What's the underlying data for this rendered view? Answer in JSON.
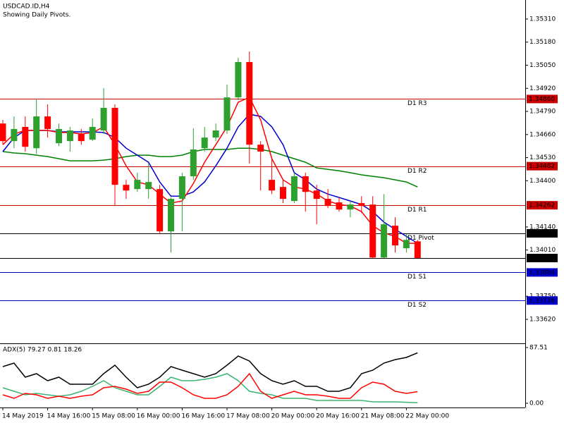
{
  "chart_data": [
    {
      "type": "candlestick",
      "title": "USDCAD.ID,H4",
      "subtitle": "Showing Daily Pivots.",
      "categories": [
        "14 May 2019",
        null,
        null,
        null,
        "14 May 16:00",
        null,
        null,
        null,
        "15 May 08:00",
        null,
        null,
        null,
        "16 May 00:00",
        null,
        null,
        null,
        "16 May 16:00",
        null,
        null,
        null,
        "17 May 08:00",
        null,
        null,
        null,
        "20 May 00:00",
        null,
        null,
        null,
        "20 May 16:00",
        null,
        null,
        null,
        "21 May 08:00",
        null,
        null,
        null,
        "22 May 00:00",
        null
      ],
      "open": [
        1.34722,
        1.34623,
        1.34703,
        1.34583,
        1.34762,
        1.34611,
        1.34623,
        1.34663,
        1.34631,
        1.34683,
        1.3481,
        1.34377,
        1.34353,
        1.34353,
        1.34353,
        1.34115,
        1.34298,
        1.34425,
        1.34583,
        1.34643,
        1.34683,
        1.34869,
        1.35068,
        1.34603,
        1.34405,
        1.34365,
        1.34286,
        1.34425,
        1.34345,
        1.34298,
        1.34278,
        1.34238,
        1.34274,
        1.34266,
        1.33968,
        1.34147,
        1.3402,
        1.34059
      ],
      "high": [
        1.34742,
        1.34762,
        1.34762,
        1.34861,
        1.3483,
        1.34722,
        1.34703,
        1.34691,
        1.3475,
        1.34921,
        1.3483,
        1.34405,
        1.34445,
        1.34496,
        1.34377,
        1.34306,
        1.34445,
        1.34695,
        1.34703,
        1.34722,
        1.34941,
        1.35092,
        1.35127,
        1.34623,
        1.34524,
        1.34405,
        1.34445,
        1.34445,
        1.34377,
        1.34353,
        1.34306,
        1.34286,
        1.34313,
        1.34313,
        1.34325,
        1.34194,
        1.34099,
        1.34067
      ],
      "low": [
        1.34603,
        1.34583,
        1.34564,
        1.34552,
        1.34643,
        1.34595,
        1.34564,
        1.34603,
        1.34623,
        1.34663,
        1.34258,
        1.34298,
        1.34337,
        1.34298,
        1.34099,
        1.33996,
        1.34115,
        1.34405,
        1.34564,
        1.34623,
        1.34663,
        1.34853,
        1.34496,
        1.34345,
        1.34325,
        1.34274,
        1.34274,
        1.34226,
        1.34155,
        1.34246,
        1.34226,
        1.34194,
        1.34218,
        1.33965,
        1.33965,
        1.33996,
        1.33996,
        1.33965
      ],
      "close": [
        1.34623,
        1.34691,
        1.34591,
        1.34762,
        1.34691,
        1.34691,
        1.34683,
        1.34623,
        1.34703,
        1.3481,
        1.34377,
        1.34345,
        1.34405,
        1.34393,
        1.34115,
        1.34298,
        1.34425,
        1.34576,
        1.34643,
        1.34683,
        1.34869,
        1.35068,
        1.34603,
        1.34564,
        1.34345,
        1.34298,
        1.34425,
        1.34337,
        1.34298,
        1.34258,
        1.34238,
        1.34266,
        1.34258,
        1.33968,
        1.34155,
        1.34036,
        1.34067,
        1.33965
      ],
      "up_color": "#2ea02e",
      "down_color": "#ff0000",
      "series": [
        {
          "color": "#008000",
          "values": [
            1.34564,
            1.34556,
            1.34552,
            1.34544,
            1.34536,
            1.34524,
            1.34512,
            1.34512,
            1.34512,
            1.34516,
            1.34524,
            1.34536,
            1.34544,
            1.34544,
            1.34536,
            1.34536,
            1.34544,
            1.34564,
            1.34576,
            1.34576,
            1.34576,
            1.34583,
            1.34583,
            1.34576,
            1.34564,
            1.34544,
            1.34524,
            1.34504,
            1.34472,
            1.34464,
            1.34456,
            1.34445,
            1.34433,
            1.34425,
            1.34417,
            1.34405,
            1.34393,
            1.34365
          ]
        },
        {
          "color": "#0000cc",
          "values": [
            1.34564,
            1.34643,
            1.34683,
            1.34683,
            1.34683,
            1.34675,
            1.34675,
            1.34675,
            1.34675,
            1.34671,
            1.34643,
            1.34583,
            1.34544,
            1.34504,
            1.34393,
            1.34313,
            1.34313,
            1.34337,
            1.34393,
            1.34484,
            1.34583,
            1.34703,
            1.34774,
            1.34762,
            1.34703,
            1.34603,
            1.34445,
            1.34405,
            1.34353,
            1.34325,
            1.34306,
            1.34286,
            1.34266,
            1.34226,
            1.34167,
            1.34127,
            1.34087,
            1.34048
          ]
        },
        {
          "color": "#ff0000",
          "values": [
            1.34603,
            1.34663,
            1.34683,
            1.34683,
            1.34683,
            1.34671,
            1.34671,
            1.34663,
            1.34671,
            1.34703,
            1.34603,
            1.34484,
            1.34393,
            1.34377,
            1.34325,
            1.34274,
            1.34286,
            1.34385,
            1.34504,
            1.34603,
            1.34703,
            1.34842,
            1.34869,
            1.34742,
            1.34524,
            1.34405,
            1.34365,
            1.34353,
            1.34325,
            1.34286,
            1.34266,
            1.34258,
            1.34226,
            1.34147,
            1.34107,
            1.34087,
            1.34048,
            1.34048
          ]
        }
      ],
      "levels": [
        {
          "name": "D1 R3",
          "value": 1.3486,
          "label": "1.34860",
          "color": "#cc0000"
        },
        {
          "name": "D1 R2",
          "value": 1.34482,
          "label": "1.34482",
          "color": "#cc0000"
        },
        {
          "name": "D1 R1",
          "value": 1.34262,
          "label": "1.34262",
          "color": "#cc0000"
        },
        {
          "name": "D1 Pivot",
          "value": 1.34104,
          "label": "1.34104",
          "color": "#000000"
        },
        {
          "name": "D1 S1",
          "value": 1.33884,
          "label": "1.33884",
          "color": "#0000cc"
        },
        {
          "name": "D1 S2",
          "value": 1.33726,
          "label": "1.33726",
          "color": "#0000cc"
        }
      ],
      "current_price": {
        "value": 1.33965,
        "label": "1.33965",
        "color": "#000000"
      },
      "ylim": [
        1.33485,
        1.35417
      ],
      "yticks": [
        {
          "value": 1.3531,
          "label": "1.35310"
        },
        {
          "value": 1.3518,
          "label": "1.35180"
        },
        {
          "value": 1.3505,
          "label": "1.35050"
        },
        {
          "value": 1.3492,
          "label": "1.34920"
        },
        {
          "value": 1.3479,
          "label": "1.34790"
        },
        {
          "value": 1.3466,
          "label": "1.34660"
        },
        {
          "value": 1.3453,
          "label": "1.34530"
        },
        {
          "value": 1.344,
          "label": "1.34400"
        },
        {
          "value": 1.3414,
          "label": "1.34140"
        },
        {
          "value": 1.3401,
          "label": "1.34010"
        },
        {
          "value": 1.3375,
          "label": "1.33750"
        },
        {
          "value": 1.3362,
          "label": "1.33620"
        }
      ]
    },
    {
      "type": "line",
      "title": "ADX(5) 79.27 0.81 18.26",
      "series": [
        {
          "color": "#000000",
          "values": [
            57.6,
            63.1,
            41.0,
            46.5,
            35.4,
            41.0,
            29.9,
            29.9,
            29.9,
            46.5,
            59.8,
            41.0,
            24.4,
            29.9,
            41.0,
            57.6,
            52.0,
            46.5,
            41.0,
            46.5,
            59.8,
            74.2,
            66.4,
            46.5,
            35.4,
            29.9,
            35.4,
            26.6,
            26.6,
            18.8,
            18.8,
            24.4,
            46.5,
            52.0,
            63.1,
            68.6,
            72.0,
            79.27
          ]
        },
        {
          "color": "#3cb371",
          "values": [
            24.4,
            18.8,
            13.3,
            15.5,
            13.3,
            11.1,
            13.3,
            18.8,
            26.6,
            35.4,
            24.4,
            18.8,
            13.3,
            13.3,
            26.6,
            41.0,
            35.4,
            35.4,
            37.7,
            41.0,
            46.5,
            35.4,
            18.8,
            15.5,
            13.3,
            7.8,
            7.8,
            7.8,
            4.4,
            4.4,
            4.4,
            4.4,
            4.4,
            2.2,
            2.2,
            2.2,
            1.5,
            0.81
          ]
        },
        {
          "color": "#ff0000",
          "values": [
            13.3,
            7.8,
            15.5,
            13.3,
            7.8,
            11.1,
            7.8,
            11.1,
            13.3,
            24.4,
            26.6,
            22.1,
            15.5,
            18.8,
            33.2,
            33.2,
            24.4,
            13.3,
            7.8,
            7.8,
            13.3,
            26.6,
            46.5,
            18.8,
            7.8,
            13.3,
            18.8,
            13.3,
            13.3,
            11.1,
            7.8,
            7.8,
            24.4,
            33.2,
            29.9,
            18.8,
            15.5,
            18.26
          ]
        }
      ],
      "ylim": [
        0,
        87.51
      ],
      "yticks": [
        {
          "value": 0,
          "label": "0.00"
        },
        87.51
      ]
    }
  ]
}
